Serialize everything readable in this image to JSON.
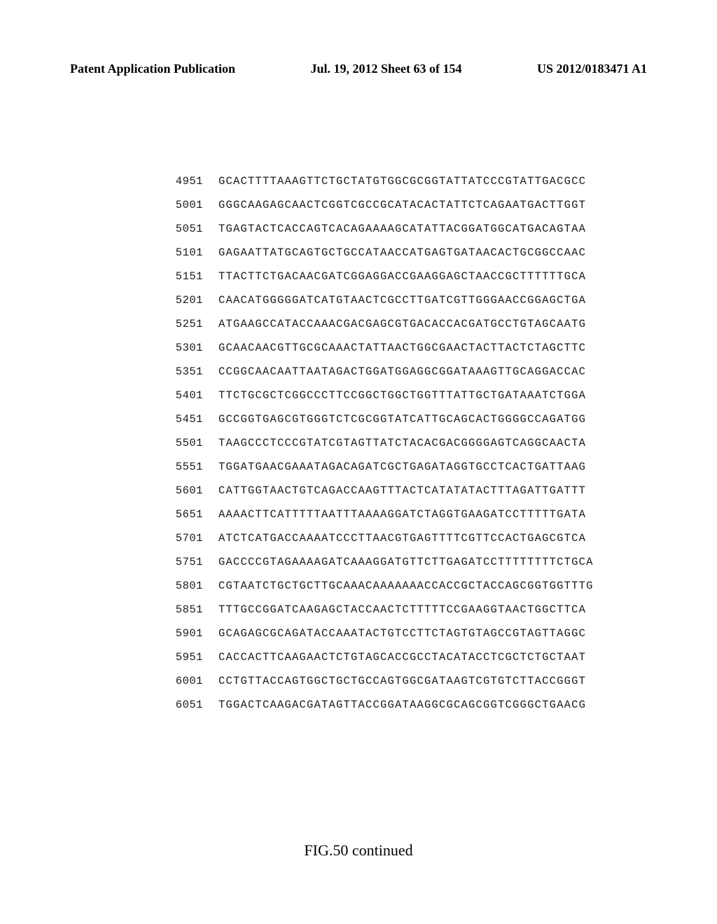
{
  "header": {
    "left": "Patent Application Publication",
    "center": "Jul. 19, 2012  Sheet 63 of 154",
    "right": "US 2012/0183471 A1"
  },
  "sequence": {
    "font_family": "Courier New",
    "font_size_pt": 12,
    "text_color": "#1a1a1a",
    "background_color": "#ffffff",
    "rows": [
      {
        "pos": "4951",
        "seq": "GCACTTTTAAAGTTCTGCTATGTGGCGCGGTATTATCCCGTATTGACGCC"
      },
      {
        "pos": "5001",
        "seq": "GGGCAAGAGCAACTCGGTCGCCGCATACACTATTCTCAGAATGACTTGGT"
      },
      {
        "pos": "5051",
        "seq": "TGAGTACTCACCAGTCACAGAAAAGCATATTACGGATGGCATGACAGTAA"
      },
      {
        "pos": "5101",
        "seq": "GAGAATTATGCAGTGCTGCCATAACCATGAGTGATAACACTGCGGCCAAC"
      },
      {
        "pos": "5151",
        "seq": "TTACTTCTGACAACGATCGGAGGACCGAAGGAGCTAACCGCTTTTTTGCA"
      },
      {
        "pos": "5201",
        "seq": "CAACATGGGGGATCATGTAACTCGCCTTGATCGTTGGGAACCGGAGCTGA"
      },
      {
        "pos": "5251",
        "seq": "ATGAAGCCATACCAAACGACGAGCGTGACACCACGATGCCTGTAGCAATG"
      },
      {
        "pos": "5301",
        "seq": "GCAACAACGTTGCGCAAACTATTAACTGGCGAACTACTTACTCTAGCTTC"
      },
      {
        "pos": "5351",
        "seq": "CCGGCAACAATTAATAGACTGGATGGAGGCGGATAAAGTTGCAGGACCAC"
      },
      {
        "pos": "5401",
        "seq": "TTCTGCGCTCGGCCCTTCCGGCTGGCTGGTTTATTGCTGATAAATCTGGA"
      },
      {
        "pos": "5451",
        "seq": "GCCGGTGAGCGTGGGTCTCGCGGTATCATTGCAGCACTGGGGCCAGATGG"
      },
      {
        "pos": "5501",
        "seq": "TAAGCCCTCCCGTATCGTAGTTATCTACACGACGGGGAGTCAGGCAACTA"
      },
      {
        "pos": "5551",
        "seq": "TGGATGAACGAAATAGACAGATCGCTGAGATAGGTGCCTCACTGATTAAG"
      },
      {
        "pos": "5601",
        "seq": "CATTGGTAACTGTCAGACCAAGTTTACTCATATATACTTTAGATTGATTT"
      },
      {
        "pos": "5651",
        "seq": "AAAACTTCATTTTTAATTTAAAAGGATCTAGGTGAAGATCCTTTTTGATA"
      },
      {
        "pos": "5701",
        "seq": "ATCTCATGACCAAAATCCCTTAACGTGAGTTTTCGTTCCACTGAGCGTCA"
      },
      {
        "pos": "5751",
        "seq": "GACCCCGTAGAAAAGATCAAAGGATGTTCTTGAGATCCTTTTTTTTCTGCA"
      },
      {
        "pos": "5801",
        "seq": "CGTAATCTGCTGCTTGCAAACAAAAAAACCACCGCTACCAGCGGTGGTTTG"
      },
      {
        "pos": "5851",
        "seq": "TTTGCCGGATCAAGAGCTACCAACTCTTTTTCCGAAGGTAACTGGCTTCA"
      },
      {
        "pos": "5901",
        "seq": "GCAGAGCGCAGATACCAAATACTGTCCTTCTAGTGTAGCCGTAGTTAGGC"
      },
      {
        "pos": "5951",
        "seq": "CACCACTTCAAGAACTCTGTAGCACCGCCTACATACCTCGCTCTGCTAAT"
      },
      {
        "pos": "6001",
        "seq": "CCTGTTACCAGTGGCTGCTGCCAGTGGCGATAAGTCGTGTCTTACCGGGT"
      },
      {
        "pos": "6051",
        "seq": "TGGACTCAAGACGATAGTTACCGGATAAGGCGCAGCGGTCGGGCTGAACG"
      }
    ]
  },
  "figure_caption": "FIG.50 continued"
}
